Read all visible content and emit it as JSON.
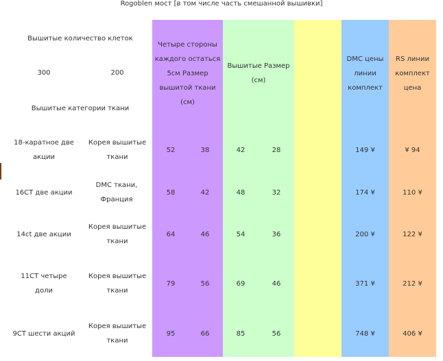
{
  "title": "Rogoblen мост [в том числе часть смешанной вышивки]",
  "header": {
    "stitch_count_label": "Вышитые количество клеток",
    "count_300": "300",
    "count_200": "200",
    "fabric_category_label": "Вышитые категории ткани",
    "margin_size_label": "Четыре стороны каждого остаться 5см Размер вышитой ткани (см)",
    "embroidered_size_label": "Вышитые Размер (см)",
    "dmc_price_label": "DMC цены линии комплект",
    "rs_price_label": "RS линии комплект цена"
  },
  "colors": {
    "purple": "#cc99ff",
    "green": "#ccffcc",
    "yellow": "#ffff99",
    "blue": "#99ccff",
    "orange": "#ffcc99"
  },
  "rows": [
    {
      "count": "18-каратное две акции",
      "fabric": "Корея вышитые ткани",
      "m300": "52",
      "m200": "38",
      "e300": "42",
      "e200": "28",
      "dmc": "149 ¥",
      "rs": "¥ 94"
    },
    {
      "count": "16CT две акции",
      "fabric": "DMC ткани, Франция",
      "m300": "58",
      "m200": "42",
      "e300": "48",
      "e200": "32",
      "dmc": "174 ¥",
      "rs": "110 ¥"
    },
    {
      "count": "14ct две акции",
      "fabric": "Корея вышитые ткани",
      "m300": "64",
      "m200": "46",
      "e300": "54",
      "e200": "36",
      "dmc": "200 ¥",
      "rs": "122 ¥"
    },
    {
      "count": "11CT четыре доли",
      "fabric": "Корея вышитые ткани",
      "m300": "79",
      "m200": "56",
      "e300": "69",
      "e200": "46",
      "dmc": "371 ¥",
      "rs": "212 ¥"
    },
    {
      "count": "9CT шести акций",
      "fabric": "Корея вышитые ткани",
      "m300": "95",
      "m200": "66",
      "e300": "85",
      "e200": "56",
      "dmc": "748 ¥",
      "rs": "406 ¥"
    }
  ]
}
